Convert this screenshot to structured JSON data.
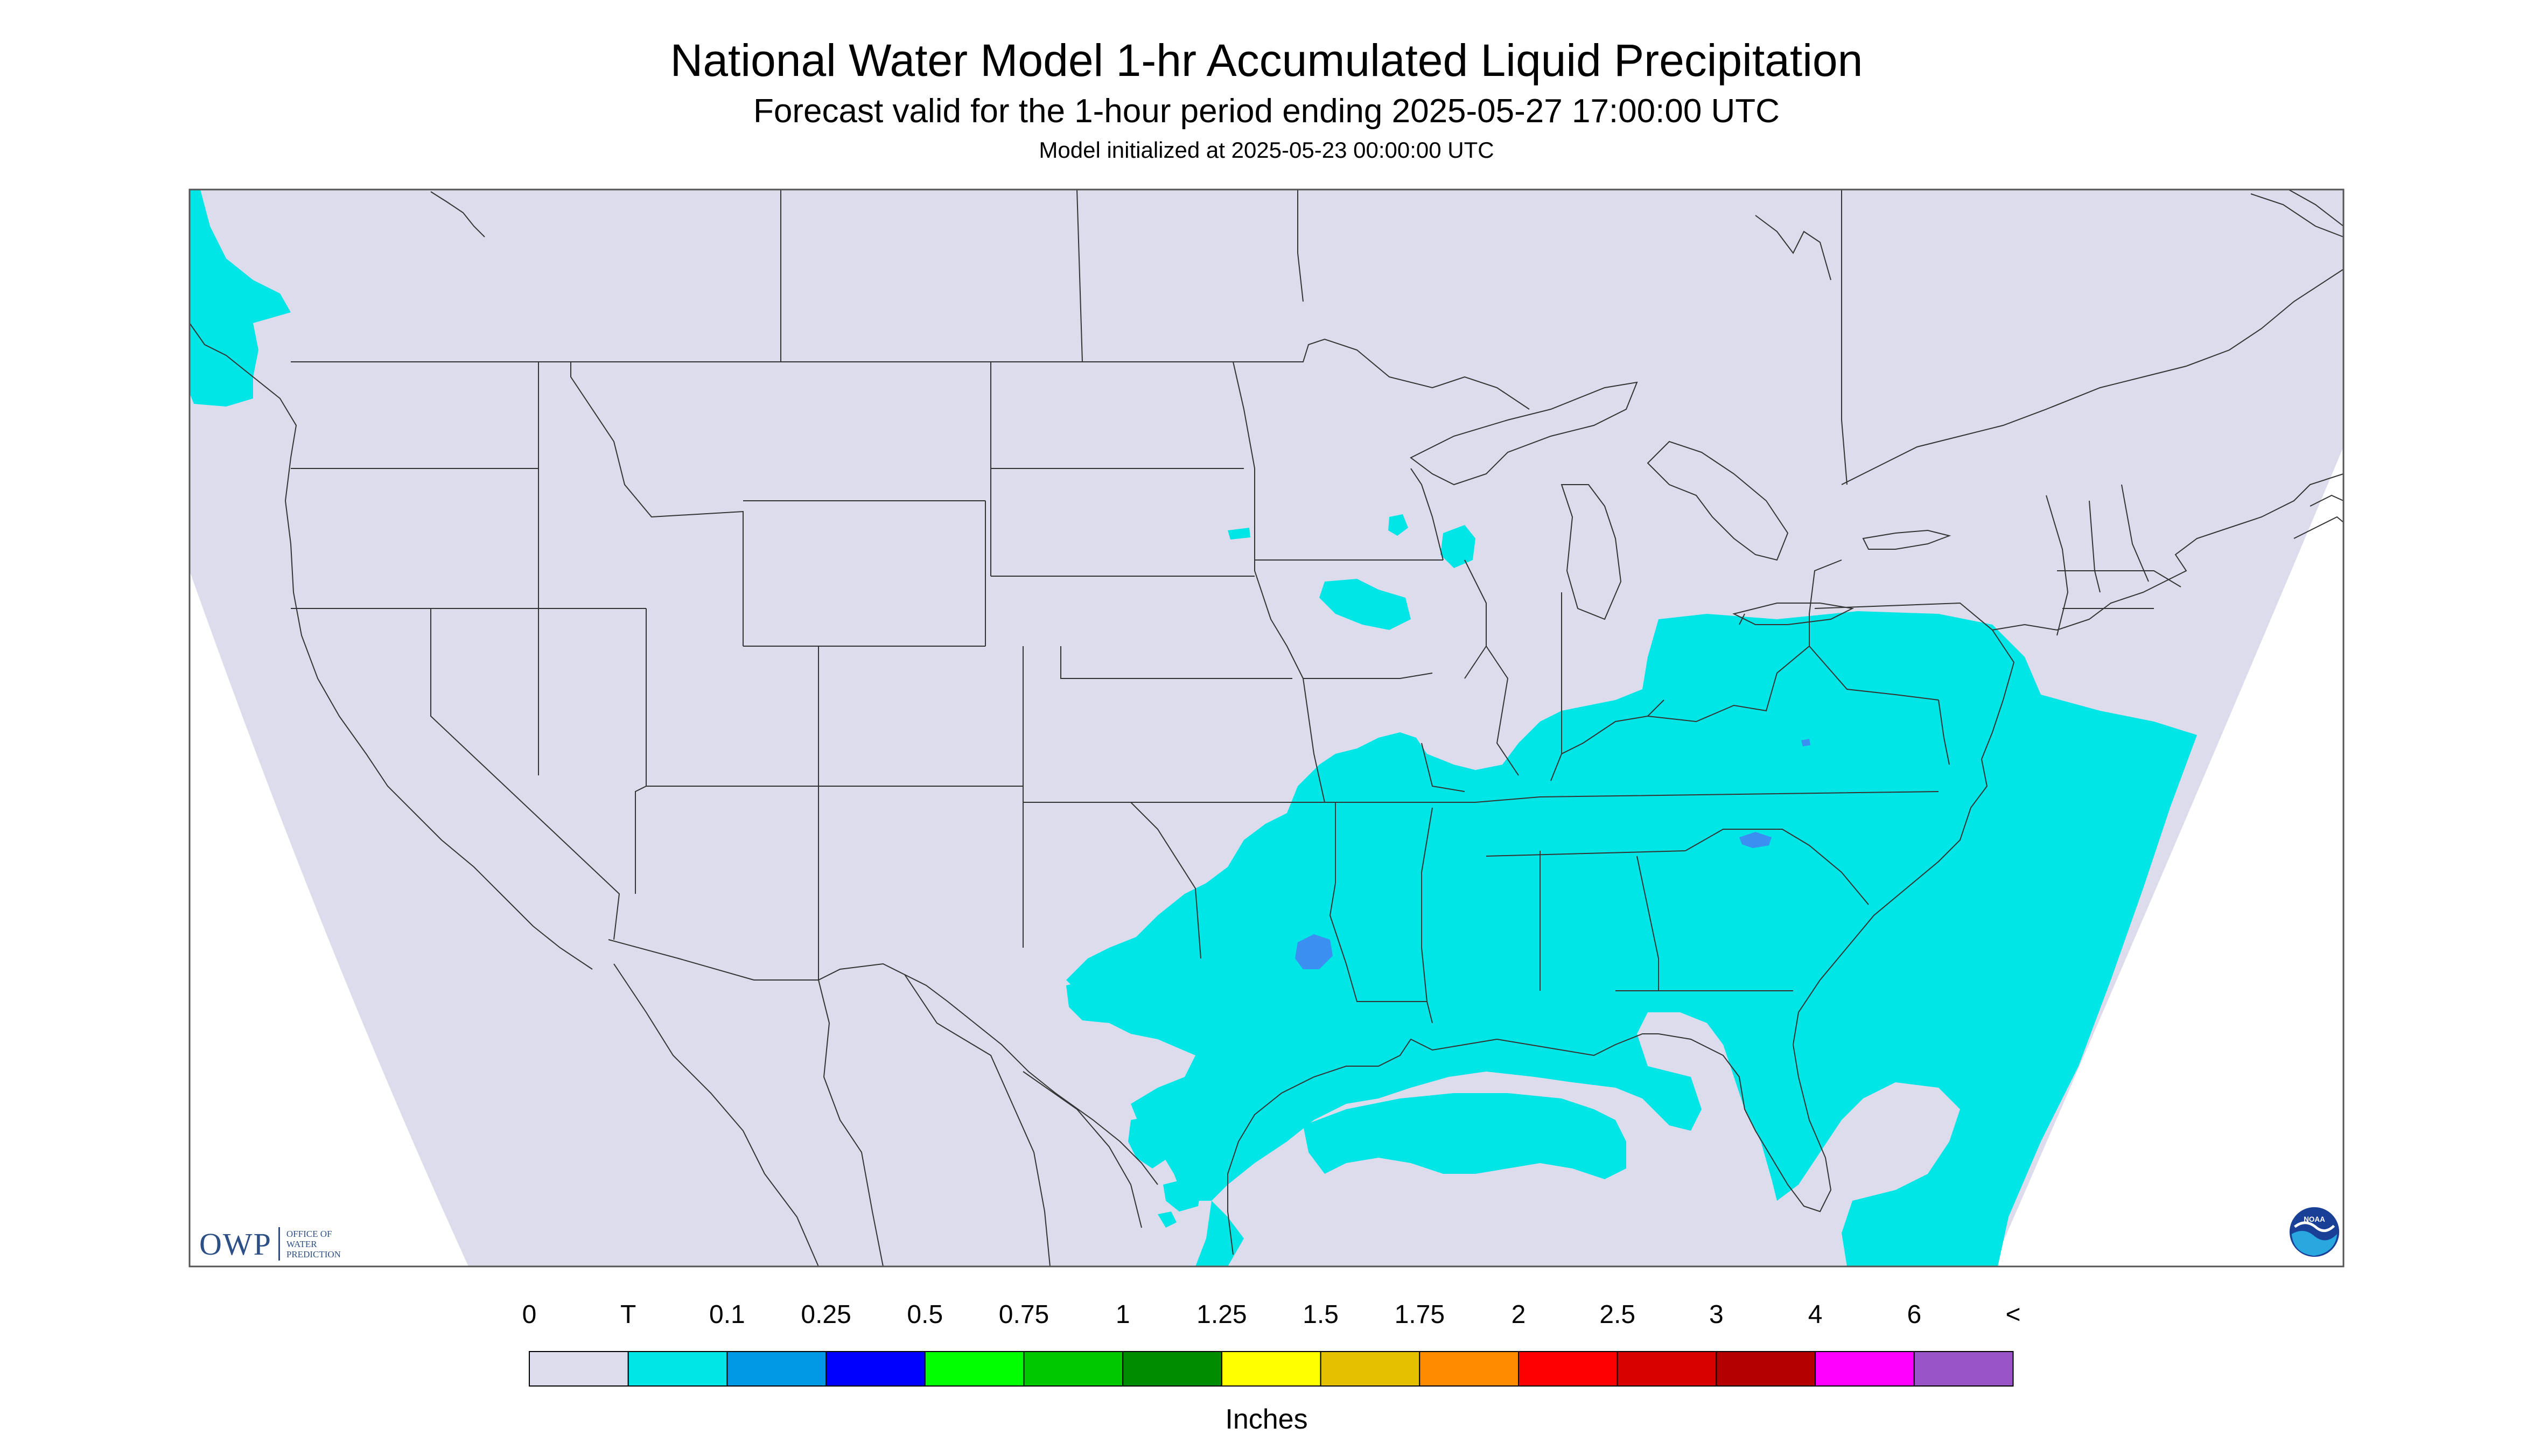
{
  "header": {
    "title": "National Water Model 1-hr Accumulated Liquid Precipitation",
    "subtitle": "Forecast valid for the 1-hour period ending 2025-05-27 17:00:00 UTC",
    "init": "Model initialized at 2025-05-23 00:00:00 UTC"
  },
  "map": {
    "background_color": "#ffffff",
    "domain_fill": "#dcdcec",
    "border_color": "#333333",
    "precip_areas": [
      {
        "region": "Pacific Northwest coast",
        "level": "T"
      },
      {
        "region": "Southeast, Mid-Atlantic, Ohio Valley and Gulf Coast",
        "level": "T"
      },
      {
        "region": "Western Atlantic",
        "level": "T"
      },
      {
        "region": "Gulf of Mexico",
        "level": "T"
      },
      {
        "region": "Iowa / Wisconsin scattered cells",
        "level": "T"
      },
      {
        "region": "Louisiana cell",
        "level": "0.1"
      },
      {
        "region": "South Carolina cell",
        "level": "0.1"
      }
    ]
  },
  "logos": {
    "owp_mark": "OWP",
    "owp_lines": [
      "OFFICE OF",
      "WATER",
      "PREDICTION"
    ],
    "noaa_text": "NOAA"
  },
  "legend": {
    "labels": [
      "0",
      "T",
      "0.1",
      "0.25",
      "0.5",
      "0.75",
      "1",
      "1.25",
      "1.5",
      "1.75",
      "2",
      "2.5",
      "3",
      "4",
      "6",
      "<"
    ],
    "colors": [
      "#dcdcec",
      "#00e5e5",
      "#0099e5",
      "#0000ff",
      "#00ff00",
      "#00c800",
      "#008c00",
      "#ffff00",
      "#e5c000",
      "#ff8c00",
      "#ff0000",
      "#d90000",
      "#b50000",
      "#ff00ff",
      "#9955c8"
    ],
    "units": "Inches"
  }
}
